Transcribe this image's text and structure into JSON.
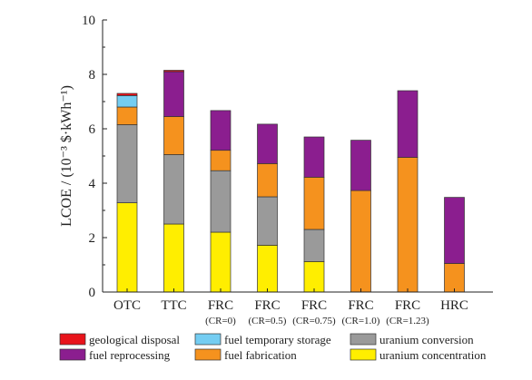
{
  "chart_data": {
    "type": "bar",
    "stacked": true,
    "ylabel": "LCOE / (10⁻³ $·kWh⁻¹)",
    "ylim": [
      0,
      10
    ],
    "yticks": [
      0,
      2,
      4,
      6,
      8,
      10
    ],
    "grid": false,
    "legend_position": "bottom",
    "categories": [
      "OTC",
      "TTC",
      "FRC",
      "FRC",
      "FRC",
      "FRC",
      "FRC",
      "HRC"
    ],
    "category_sublabels": [
      "",
      "",
      "(CR=0)",
      "(CR=0.5)",
      "(CR=0.75)",
      "(CR=1.0)",
      "(CR=1.23)",
      ""
    ],
    "series": [
      {
        "name": "uranium concentration",
        "color": "#ffee00",
        "values": [
          3.28,
          2.5,
          2.2,
          1.72,
          1.12,
          0,
          0,
          0
        ]
      },
      {
        "name": "uranium conversion",
        "color": "#9a9a9a",
        "values": [
          2.87,
          2.55,
          2.26,
          1.78,
          1.18,
          0,
          0,
          0
        ]
      },
      {
        "name": "fuel fabrication",
        "color": "#f5921e",
        "values": [
          0.65,
          1.4,
          0.75,
          1.22,
          1.92,
          3.73,
          4.95,
          1.05
        ]
      },
      {
        "name": "fuel temporary storage",
        "color": "#74cdf2",
        "values": [
          0.42,
          0,
          0,
          0,
          0,
          0,
          0,
          0
        ]
      },
      {
        "name": "fuel reprocessing",
        "color": "#8b1e8f",
        "values": [
          0,
          1.65,
          1.46,
          1.45,
          1.48,
          1.85,
          2.45,
          2.43
        ]
      },
      {
        "name": "geological disposal",
        "color": "#e8141b",
        "values": [
          0.08,
          0.05,
          0,
          0,
          0,
          0,
          0,
          0
        ]
      }
    ],
    "legend_rows": [
      [
        "geological disposal",
        "fuel temporary storage",
        "uranium conversion"
      ],
      [
        "fuel reprocessing",
        "fuel fabrication",
        "uranium concentration"
      ]
    ]
  }
}
